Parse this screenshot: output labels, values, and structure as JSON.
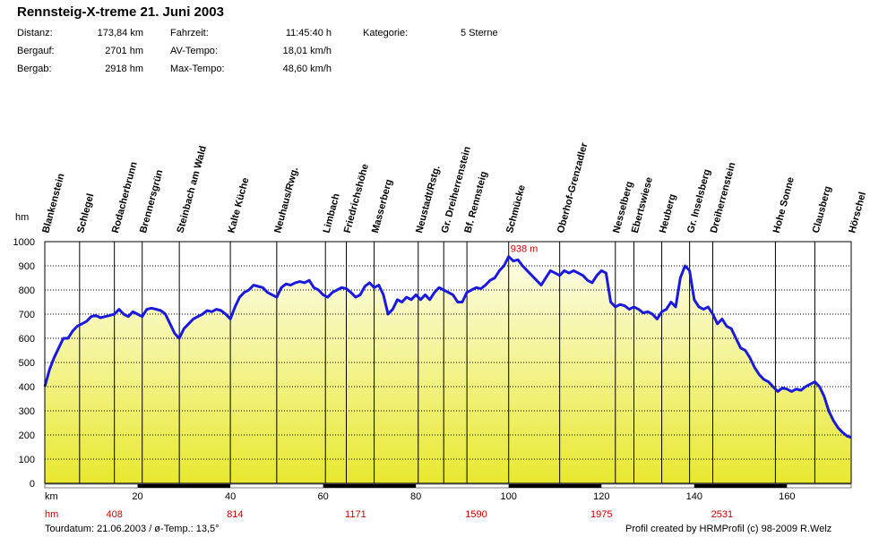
{
  "header": {
    "title": "Rennsteig-X-treme 21. Juni 2003",
    "stats": [
      {
        "label": "Distanz:",
        "value": "173,84 km"
      },
      {
        "label": "Bergauf:",
        "value": "2701 hm"
      },
      {
        "label": "Bergab:",
        "value": "2918 hm"
      },
      {
        "label": "Fahrzeit:",
        "value": "11:45:40 h"
      },
      {
        "label": "AV-Tempo:",
        "value": "18,01 km/h"
      },
      {
        "label": "Max-Tempo:",
        "value": "48,60 km/h"
      },
      {
        "label": "Kategorie:",
        "value": "5 Sterne"
      }
    ]
  },
  "footer": {
    "tour_info": "Tourdatum: 21.06.2003  /  ø-Temp.: 13,5°",
    "credit": "Profil created by HRMProfil (c) 98-2009 R.Welz"
  },
  "chart_data": {
    "type": "area",
    "title": "Rennsteig-X-treme 21. Juni 2003",
    "xlabel": "km",
    "ylabel": "hm",
    "xlim": [
      0,
      173.84
    ],
    "ylim": [
      0,
      1000
    ],
    "y_ticks": [
      0,
      100,
      200,
      300,
      400,
      500,
      600,
      700,
      800,
      900,
      1000
    ],
    "x_ticks": [
      20,
      40,
      60,
      80,
      100,
      120,
      140,
      160
    ],
    "grid": true,
    "line_color": "#1a1adc",
    "fill_top_color": "#fdfde8",
    "fill_bottom_color": "#e8e830",
    "max_label": {
      "x": 100,
      "y": 938,
      "text": "938 m",
      "color": "#cc0000"
    },
    "cumulative_climb": {
      "label": "hm",
      "color": "#cc0000",
      "points": [
        {
          "x": 15,
          "text": "408"
        },
        {
          "x": 41,
          "text": "814"
        },
        {
          "x": 67,
          "text": "1171"
        },
        {
          "x": 93,
          "text": "1590"
        },
        {
          "x": 120,
          "text": "1975"
        },
        {
          "x": 146,
          "text": "2531"
        }
      ]
    },
    "waypoints": [
      {
        "name": "Blankenstein",
        "x": 0
      },
      {
        "name": "Schlegel",
        "x": 7.5
      },
      {
        "name": "Rodacherbrunn",
        "x": 15
      },
      {
        "name": "Brennersgrün",
        "x": 21
      },
      {
        "name": "Steinbach am Wald",
        "x": 29
      },
      {
        "name": "Kalte Küche",
        "x": 40
      },
      {
        "name": "Neuhaus/Rwg.",
        "x": 50
      },
      {
        "name": "Limbach",
        "x": 60.5
      },
      {
        "name": "Friedrichshöhe",
        "x": 65
      },
      {
        "name": "Masserberg",
        "x": 71
      },
      {
        "name": "Neustadt/Rstg.",
        "x": 80.5
      },
      {
        "name": "Gr. Dreiherrenstein",
        "x": 86
      },
      {
        "name": "Bf. Rennsteig",
        "x": 91
      },
      {
        "name": "Schmücke",
        "x": 100
      },
      {
        "name": "Oberhof-Grenzadler",
        "x": 111
      },
      {
        "name": "Nesselberg",
        "x": 123
      },
      {
        "name": "Ebertswiese",
        "x": 127
      },
      {
        "name": "Heuberg",
        "x": 133
      },
      {
        "name": "Gr. Inselsberg",
        "x": 139
      },
      {
        "name": "Dreiherrenstein",
        "x": 144
      },
      {
        "name": "Hohe Sonne",
        "x": 157.5
      },
      {
        "name": "Clausberg",
        "x": 166
      },
      {
        "name": "Hörschel",
        "x": 173.84
      }
    ],
    "series": [
      {
        "points": [
          [
            0,
            400
          ],
          [
            1,
            470
          ],
          [
            2,
            520
          ],
          [
            3,
            560
          ],
          [
            4,
            600
          ],
          [
            5,
            600
          ],
          [
            6,
            630
          ],
          [
            7,
            650
          ],
          [
            8,
            660
          ],
          [
            9,
            670
          ],
          [
            10,
            690
          ],
          [
            11,
            695
          ],
          [
            12,
            685
          ],
          [
            13,
            690
          ],
          [
            14,
            695
          ],
          [
            15,
            700
          ],
          [
            16,
            720
          ],
          [
            17,
            700
          ],
          [
            18,
            690
          ],
          [
            19,
            710
          ],
          [
            20,
            700
          ],
          [
            21,
            690
          ],
          [
            22,
            720
          ],
          [
            23,
            725
          ],
          [
            24,
            720
          ],
          [
            25,
            715
          ],
          [
            26,
            700
          ],
          [
            27,
            660
          ],
          [
            28,
            620
          ],
          [
            29,
            600
          ],
          [
            30,
            640
          ],
          [
            31,
            660
          ],
          [
            32,
            680
          ],
          [
            33,
            690
          ],
          [
            34,
            700
          ],
          [
            35,
            715
          ],
          [
            36,
            710
          ],
          [
            37,
            720
          ],
          [
            38,
            715
          ],
          [
            39,
            700
          ],
          [
            40,
            680
          ],
          [
            41,
            730
          ],
          [
            42,
            770
          ],
          [
            43,
            790
          ],
          [
            44,
            800
          ],
          [
            45,
            820
          ],
          [
            46,
            815
          ],
          [
            47,
            810
          ],
          [
            48,
            790
          ],
          [
            49,
            780
          ],
          [
            50,
            770
          ],
          [
            51,
            810
          ],
          [
            52,
            825
          ],
          [
            53,
            820
          ],
          [
            54,
            830
          ],
          [
            55,
            835
          ],
          [
            56,
            830
          ],
          [
            57,
            840
          ],
          [
            58,
            810
          ],
          [
            59,
            800
          ],
          [
            60,
            780
          ],
          [
            61,
            770
          ],
          [
            62,
            790
          ],
          [
            63,
            800
          ],
          [
            64,
            810
          ],
          [
            65,
            805
          ],
          [
            66,
            790
          ],
          [
            67,
            770
          ],
          [
            68,
            780
          ],
          [
            69,
            815
          ],
          [
            70,
            830
          ],
          [
            71,
            810
          ],
          [
            72,
            820
          ],
          [
            73,
            780
          ],
          [
            74,
            700
          ],
          [
            75,
            720
          ],
          [
            76,
            760
          ],
          [
            77,
            750
          ],
          [
            78,
            770
          ],
          [
            79,
            760
          ],
          [
            80,
            780
          ],
          [
            81,
            760
          ],
          [
            82,
            780
          ],
          [
            83,
            760
          ],
          [
            84,
            790
          ],
          [
            85,
            810
          ],
          [
            86,
            800
          ],
          [
            87,
            790
          ],
          [
            88,
            780
          ],
          [
            89,
            750
          ],
          [
            90,
            750
          ],
          [
            91,
            790
          ],
          [
            92,
            800
          ],
          [
            93,
            810
          ],
          [
            94,
            805
          ],
          [
            95,
            820
          ],
          [
            96,
            840
          ],
          [
            97,
            850
          ],
          [
            98,
            880
          ],
          [
            99,
            900
          ],
          [
            100,
            938
          ],
          [
            101,
            920
          ],
          [
            102,
            925
          ],
          [
            103,
            900
          ],
          [
            104,
            880
          ],
          [
            105,
            860
          ],
          [
            106,
            840
          ],
          [
            107,
            820
          ],
          [
            108,
            850
          ],
          [
            109,
            880
          ],
          [
            110,
            870
          ],
          [
            111,
            860
          ],
          [
            112,
            880
          ],
          [
            113,
            870
          ],
          [
            114,
            880
          ],
          [
            115,
            870
          ],
          [
            116,
            860
          ],
          [
            117,
            840
          ],
          [
            118,
            830
          ],
          [
            119,
            860
          ],
          [
            120,
            880
          ],
          [
            121,
            870
          ],
          [
            122,
            750
          ],
          [
            123,
            730
          ],
          [
            124,
            740
          ],
          [
            125,
            735
          ],
          [
            126,
            720
          ],
          [
            127,
            730
          ],
          [
            128,
            720
          ],
          [
            129,
            705
          ],
          [
            130,
            710
          ],
          [
            131,
            700
          ],
          [
            132,
            680
          ],
          [
            133,
            710
          ],
          [
            134,
            720
          ],
          [
            135,
            750
          ],
          [
            136,
            730
          ],
          [
            137,
            850
          ],
          [
            138,
            900
          ],
          [
            139,
            880
          ],
          [
            140,
            760
          ],
          [
            141,
            730
          ],
          [
            142,
            720
          ],
          [
            143,
            730
          ],
          [
            144,
            700
          ],
          [
            145,
            660
          ],
          [
            146,
            680
          ],
          [
            147,
            650
          ],
          [
            148,
            640
          ],
          [
            149,
            600
          ],
          [
            150,
            560
          ],
          [
            151,
            550
          ],
          [
            152,
            520
          ],
          [
            153,
            480
          ],
          [
            154,
            450
          ],
          [
            155,
            430
          ],
          [
            156,
            420
          ],
          [
            157,
            400
          ],
          [
            158,
            380
          ],
          [
            159,
            395
          ],
          [
            160,
            390
          ],
          [
            161,
            380
          ],
          [
            162,
            390
          ],
          [
            163,
            385
          ],
          [
            164,
            400
          ],
          [
            165,
            410
          ],
          [
            166,
            420
          ],
          [
            167,
            400
          ],
          [
            168,
            360
          ],
          [
            169,
            300
          ],
          [
            170,
            260
          ],
          [
            171,
            230
          ],
          [
            172,
            210
          ],
          [
            173,
            195
          ],
          [
            173.84,
            190
          ]
        ]
      }
    ]
  }
}
